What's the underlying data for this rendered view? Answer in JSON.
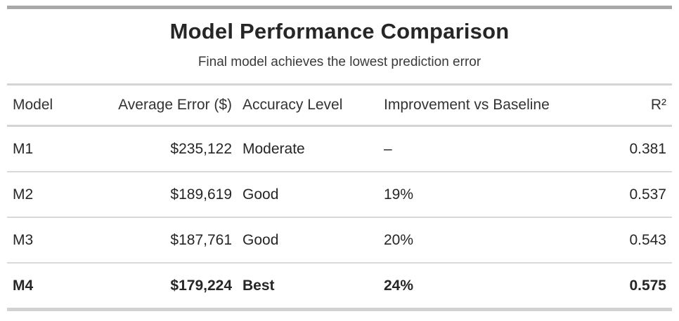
{
  "title": "Model Performance Comparison",
  "subtitle": "Final model achieves the lowest prediction error",
  "chart_data": {
    "type": "table",
    "title": "Model Performance Comparison",
    "subtitle": "Final model achieves the lowest prediction error",
    "columns": [
      "Model",
      "Average Error ($)",
      "Accuracy Level",
      "Improvement vs Baseline",
      "R²"
    ],
    "column_align": [
      "left",
      "right",
      "left",
      "left",
      "right"
    ],
    "rows": [
      [
        "M1",
        "$235,122",
        "Moderate",
        "–",
        "0.381"
      ],
      [
        "M2",
        "$189,619",
        "Good",
        "19%",
        "0.537"
      ],
      [
        "M3",
        "$187,761",
        "Good",
        "20%",
        "0.543"
      ],
      [
        "M4",
        "$179,224",
        "Best",
        "24%",
        "0.575"
      ]
    ],
    "numeric": {
      "average_error_usd": [
        235122,
        189619,
        187761,
        179224
      ],
      "improvement_vs_baseline_pct": [
        null,
        19,
        20,
        24
      ],
      "r_squared": [
        0.381,
        0.537,
        0.543,
        0.575
      ]
    },
    "highlight_row": "M4"
  },
  "colors": {
    "top_bar": "#a8a8a8",
    "bottom_bar": "#d2d2d2",
    "row_separator": "#d9d9d9",
    "section_separator": "#d4d4d4",
    "text": "#262626"
  }
}
